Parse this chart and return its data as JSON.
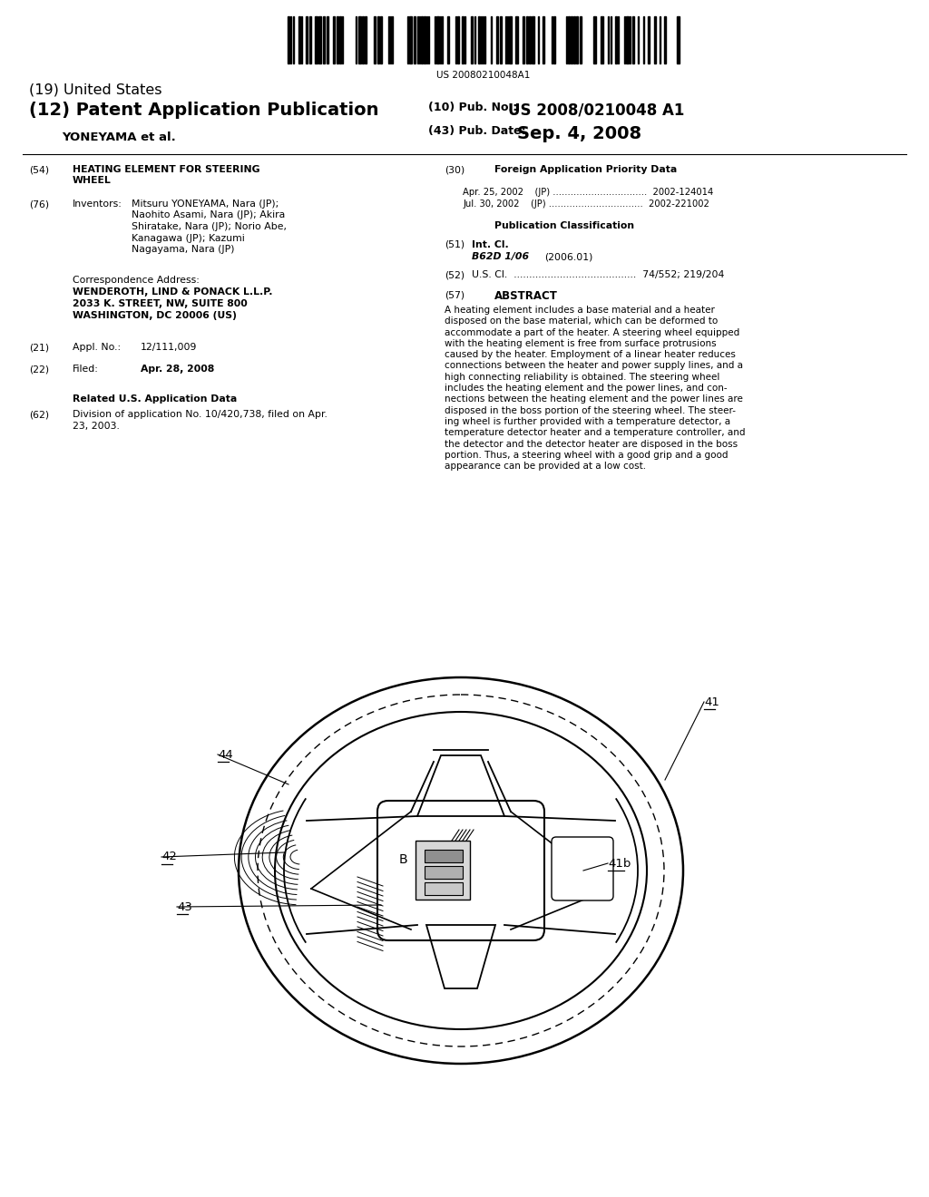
{
  "background_color": "#ffffff",
  "barcode_text": "US 20080210048A1",
  "title_19": "(19) United States",
  "title_12": "(12) Patent Application Publication",
  "pub_no_label": "(10) Pub. No.:",
  "pub_no_value": "US 2008/0210048 A1",
  "pub_date_label": "(43) Pub. Date:",
  "pub_date_value": "Sep. 4, 2008",
  "applicant": "YONEYAMA et al.",
  "field54_label": "(54)",
  "field76_label": "(76)",
  "field76_name": "Inventors:",
  "corr_label": "Correspondence Address:",
  "corr_line1": "WENDEROTH, LIND & PONACK L.L.P.",
  "corr_line2": "2033 K. STREET, NW, SUITE 800",
  "corr_line3": "WASHINGTON, DC 20006 (US)",
  "field21_label": "(21)",
  "field21_name": "Appl. No.:",
  "field21_value": "12/111,009",
  "field22_label": "(22)",
  "field22_name": "Filed:",
  "field22_value": "Apr. 28, 2008",
  "related_title": "Related U.S. Application Data",
  "field62_label": "(62)",
  "field30_label": "(30)",
  "field30_title": "Foreign Application Priority Data",
  "field30_line1": "Apr. 25, 2002    (JP) ................................  2002-124014",
  "field30_line2": "Jul. 30, 2002    (JP) ................................  2002-221002",
  "pub_class_title": "Publication Classification",
  "field51_label": "(51)",
  "field51_name": "Int. Cl.",
  "field51_class": "B62D 1/06",
  "field51_year": "(2006.01)",
  "field52_label": "(52)",
  "field57_label": "(57)",
  "field57_title": "ABSTRACT",
  "abstract_text": "A heating element includes a base material and a heater disposed on the base material, which can be deformed to accommodate a part of the heater. A steering wheel equipped with the heating element is free from surface protrusions caused by the heater. Employment of a linear heater reduces connections between the heater and power supply lines, and a high connecting reliability is obtained. The steering wheel includes the heating element and the power lines, and con-nections between the heating element and the power lines are disposed in the boss portion of the steering wheel. The steer-ing wheel is further provided with a temperature detector, a temperature detector heater and a temperature controller, and the detector and the detector heater are disposed in the boss portion. Thus, a steering wheel with a good grip and a good appearance can be provided at a low cost."
}
